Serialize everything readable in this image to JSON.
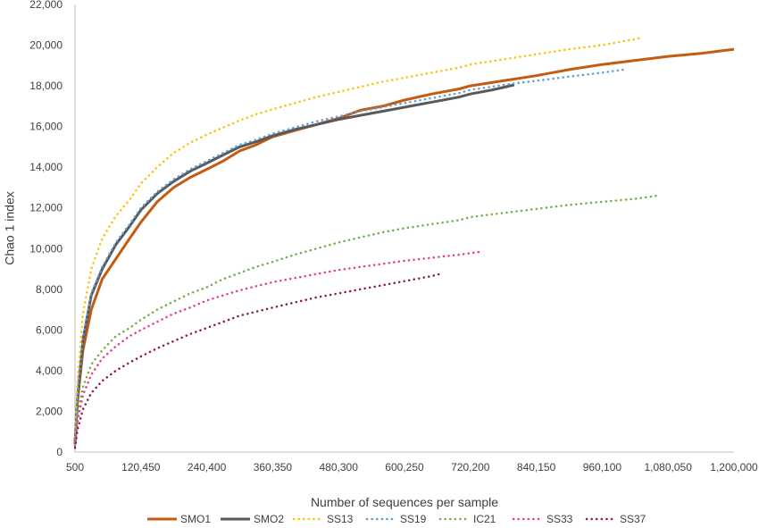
{
  "chart_data": {
    "type": "line",
    "title": "",
    "xlabel": "Number of sequences per sample",
    "ylabel": "Chao 1 index",
    "xlim": [
      500,
      1200000
    ],
    "ylim": [
      0,
      22000
    ],
    "xticks": [
      500,
      120450,
      240400,
      360350,
      480300,
      600250,
      720200,
      840150,
      960100,
      1080050,
      1200000
    ],
    "xtick_labels": [
      "500",
      "120,450",
      "240,400",
      "360,350",
      "480,300",
      "600,250",
      "720,200",
      "840,150",
      "960,100",
      "1,080,050",
      "1,200,000"
    ],
    "yticks": [
      0,
      2000,
      4000,
      6000,
      8000,
      10000,
      12000,
      14000,
      16000,
      18000,
      20000,
      22000
    ],
    "ytick_labels": [
      "0",
      "2,000",
      "4,000",
      "6,000",
      "8,000",
      "10,000",
      "12,000",
      "14,000",
      "16,000",
      "18,000",
      "20,000",
      "22,000"
    ],
    "grid": "none",
    "legend_position": "bottom",
    "series": [
      {
        "name": "SMO1",
        "color": "#C55A11",
        "style": "solid",
        "x": [
          500,
          5000,
          15000,
          30000,
          50000,
          75000,
          100000,
          120450,
          150000,
          180000,
          210000,
          240400,
          270000,
          300000,
          330000,
          360350,
          400000,
          440000,
          480300,
          520000,
          560000,
          600250,
          650000,
          700000,
          720200,
          780000,
          840150,
          900000,
          960100,
          1020000,
          1080050,
          1140000,
          1200000
        ],
        "y": [
          400,
          2500,
          5000,
          7000,
          8500,
          9500,
          10500,
          11300,
          12300,
          13000,
          13500,
          13900,
          14300,
          14800,
          15100,
          15500,
          15800,
          16100,
          16400,
          16800,
          17000,
          17300,
          17600,
          17850,
          18000,
          18250,
          18500,
          18800,
          19050,
          19250,
          19450,
          19600,
          19800
        ]
      },
      {
        "name": "SMO2",
        "color": "#595959",
        "style": "solid",
        "x": [
          500,
          5000,
          15000,
          30000,
          50000,
          75000,
          100000,
          120450,
          150000,
          180000,
          210000,
          240400,
          270000,
          300000,
          330000,
          360350,
          400000,
          440000,
          480300,
          520000,
          560000,
          600250,
          650000,
          700000,
          720200,
          760000,
          800000
        ],
        "y": [
          400,
          2700,
          5500,
          7700,
          9000,
          10200,
          11100,
          11900,
          12700,
          13300,
          13800,
          14200,
          14600,
          15000,
          15250,
          15550,
          15850,
          16100,
          16350,
          16550,
          16750,
          16950,
          17200,
          17450,
          17600,
          17800,
          18050
        ]
      },
      {
        "name": "SS13",
        "color": "#FFC000",
        "style": "dotted",
        "x": [
          500,
          5000,
          15000,
          30000,
          50000,
          75000,
          100000,
          120450,
          150000,
          180000,
          210000,
          240400,
          270000,
          300000,
          330000,
          360350,
          400000,
          440000,
          480300,
          520000,
          560000,
          600250,
          650000,
          700000,
          720200,
          780000,
          840150,
          900000,
          960100,
          1000000,
          1030000
        ],
        "y": [
          500,
          3500,
          6800,
          9000,
          10500,
          11600,
          12400,
          13200,
          14000,
          14700,
          15200,
          15600,
          15950,
          16300,
          16600,
          16850,
          17150,
          17450,
          17700,
          17950,
          18200,
          18400,
          18650,
          18900,
          19050,
          19300,
          19550,
          19800,
          20000,
          20200,
          20350
        ]
      },
      {
        "name": "SS19",
        "color": "#5B9BD5",
        "style": "dotted",
        "x": [
          500,
          5000,
          15000,
          30000,
          50000,
          75000,
          100000,
          120450,
          150000,
          180000,
          210000,
          240400,
          270000,
          300000,
          330000,
          360350,
          400000,
          440000,
          480300,
          520000,
          560000,
          600250,
          650000,
          700000,
          720200,
          780000,
          840150,
          900000,
          960100,
          1000000
        ],
        "y": [
          400,
          2800,
          5600,
          7800,
          9100,
          10300,
          11200,
          12000,
          12800,
          13400,
          13900,
          14300,
          14700,
          15100,
          15350,
          15650,
          15950,
          16250,
          16500,
          16750,
          16950,
          17150,
          17400,
          17650,
          17800,
          18050,
          18250,
          18450,
          18650,
          18800
        ]
      },
      {
        "name": "IC21",
        "color": "#70AD47",
        "style": "dotted",
        "x": [
          500,
          5000,
          15000,
          30000,
          50000,
          75000,
          100000,
          120450,
          150000,
          180000,
          210000,
          240400,
          270000,
          300000,
          330000,
          360350,
          400000,
          440000,
          480300,
          520000,
          560000,
          600250,
          650000,
          700000,
          720200,
          780000,
          840150,
          900000,
          960100,
          1020000,
          1060000
        ],
        "y": [
          300,
          1800,
          3200,
          4300,
          5000,
          5700,
          6100,
          6500,
          7000,
          7400,
          7800,
          8100,
          8500,
          8800,
          9100,
          9350,
          9700,
          10000,
          10300,
          10550,
          10800,
          11000,
          11200,
          11400,
          11550,
          11750,
          11950,
          12150,
          12300,
          12450,
          12600
        ]
      },
      {
        "name": "SS33",
        "color": "#E83A8C",
        "style": "dotted",
        "x": [
          500,
          5000,
          15000,
          30000,
          50000,
          75000,
          100000,
          120450,
          150000,
          180000,
          210000,
          240400,
          270000,
          300000,
          330000,
          360350,
          400000,
          440000,
          480300,
          520000,
          560000,
          600250,
          650000,
          700000,
          740000
        ],
        "y": [
          300,
          1500,
          2800,
          3800,
          4600,
          5200,
          5700,
          6000,
          6400,
          6800,
          7100,
          7450,
          7700,
          7950,
          8150,
          8350,
          8550,
          8750,
          8950,
          9100,
          9250,
          9400,
          9550,
          9700,
          9850
        ]
      },
      {
        "name": "SS37",
        "color": "#8B1A4A",
        "style": "dotted",
        "x": [
          500,
          5000,
          15000,
          30000,
          50000,
          75000,
          100000,
          120450,
          150000,
          180000,
          210000,
          240400,
          270000,
          300000,
          330000,
          360350,
          400000,
          440000,
          480300,
          520000,
          560000,
          600250,
          650000,
          665000
        ],
        "y": [
          200,
          1100,
          2100,
          2900,
          3500,
          4000,
          4400,
          4700,
          5100,
          5450,
          5800,
          6100,
          6400,
          6700,
          6900,
          7100,
          7350,
          7600,
          7800,
          8000,
          8200,
          8400,
          8650,
          8750
        ]
      }
    ]
  }
}
